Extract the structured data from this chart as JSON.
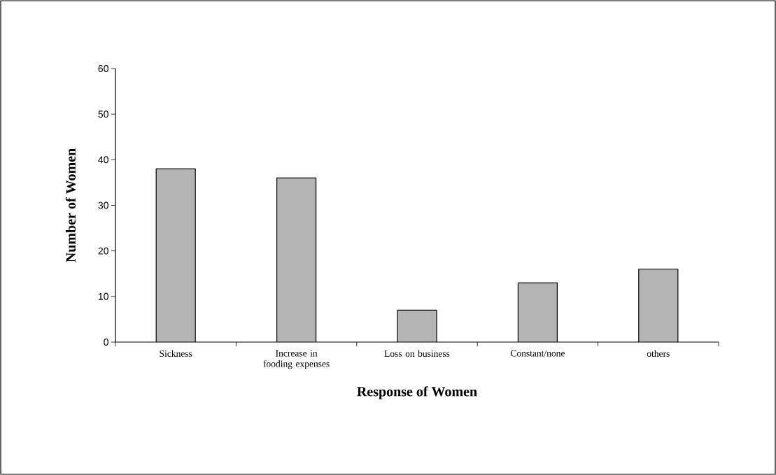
{
  "chart_data": {
    "type": "bar",
    "xlabel": "Response of Women",
    "ylabel": "Number of Women",
    "categories": [
      "Sickness",
      "Increase in fooding expenses",
      "Loss on business",
      "Constant/none",
      "others"
    ],
    "values": [
      38,
      36,
      7,
      13,
      16
    ],
    "color": "#b4b4b4",
    "ylim": [
      0,
      60
    ],
    "yticks": [
      0,
      10,
      20,
      30,
      40,
      50,
      60
    ],
    "grid": false
  }
}
